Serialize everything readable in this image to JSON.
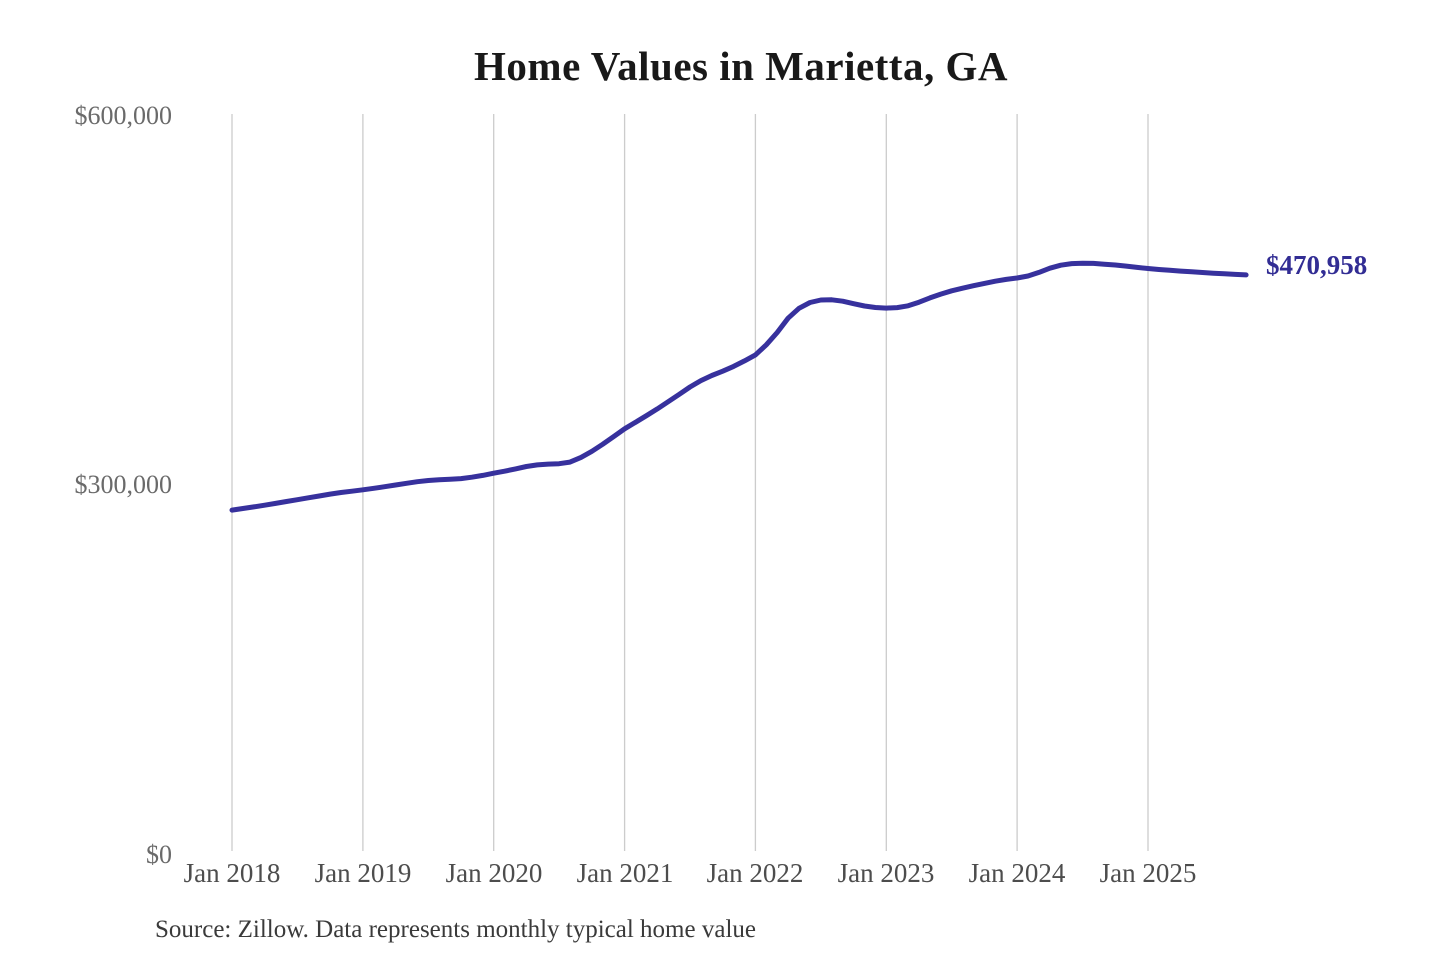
{
  "chart": {
    "title": "Home Values in Marietta, GA",
    "end_label": "$470,958",
    "source_note": "Source: Zillow. Data represents monthly typical home value"
  },
  "colors": {
    "background": "#ffffff",
    "line": "#37319d",
    "end_label_text": "#322d94",
    "gridline": "#cccccc",
    "title_text": "#191919",
    "y_tick_text": "#6a6a6a",
    "x_tick_text": "#4d4d4d",
    "source_text": "#3a3a3a"
  },
  "chart_data": {
    "type": "line",
    "title": "Home Values in Marietta, GA",
    "series_name": "Monthly typical home value",
    "source": "Source: Zillow. Data represents monthly typical home value",
    "xlabel": "",
    "ylabel": "",
    "ylim": [
      0,
      600000
    ],
    "y_tick_labels": [
      "$600,000",
      "$300,000",
      "$0"
    ],
    "y_tick_values": [
      600000,
      300000,
      0
    ],
    "x_tick_labels": [
      "Jan 2018",
      "Jan 2019",
      "Jan 2020",
      "Jan 2021",
      "Jan 2022",
      "Jan 2023",
      "Jan 2024",
      "Jan 2025"
    ],
    "grid": "vertical-only",
    "legend": "none",
    "final_value": 470958,
    "final_value_label": "$470,958",
    "months": [
      "2018-01",
      "2018-02",
      "2018-03",
      "2018-04",
      "2018-05",
      "2018-06",
      "2018-07",
      "2018-08",
      "2018-09",
      "2018-10",
      "2018-11",
      "2018-12",
      "2019-01",
      "2019-02",
      "2019-03",
      "2019-04",
      "2019-05",
      "2019-06",
      "2019-07",
      "2019-08",
      "2019-09",
      "2019-10",
      "2019-11",
      "2019-12",
      "2020-01",
      "2020-02",
      "2020-03",
      "2020-04",
      "2020-05",
      "2020-06",
      "2020-07",
      "2020-08",
      "2020-09",
      "2020-10",
      "2020-11",
      "2020-12",
      "2021-01",
      "2021-02",
      "2021-03",
      "2021-04",
      "2021-05",
      "2021-06",
      "2021-07",
      "2021-08",
      "2021-09",
      "2021-10",
      "2021-11",
      "2021-12",
      "2022-01",
      "2022-02",
      "2022-03",
      "2022-04",
      "2022-05",
      "2022-06",
      "2022-07",
      "2022-08",
      "2022-09",
      "2022-10",
      "2022-11",
      "2022-12",
      "2023-01",
      "2023-02",
      "2023-03",
      "2023-04",
      "2023-05",
      "2023-06",
      "2023-07",
      "2023-08",
      "2023-09",
      "2023-10",
      "2023-11",
      "2023-12",
      "2024-01",
      "2024-02",
      "2024-03",
      "2024-04",
      "2024-05",
      "2024-06",
      "2024-07",
      "2024-08",
      "2024-09",
      "2024-10",
      "2024-11",
      "2024-12",
      "2025-01",
      "2025-02",
      "2025-03",
      "2025-04",
      "2025-05",
      "2025-06",
      "2025-07",
      "2025-08",
      "2025-09",
      "2025-10"
    ],
    "values": [
      280000,
      281300,
      282600,
      284000,
      285500,
      287000,
      288500,
      290000,
      291500,
      293000,
      294300,
      295400,
      296500,
      297700,
      299000,
      300400,
      301800,
      303100,
      304100,
      304700,
      305100,
      305600,
      306700,
      308200,
      310000,
      311600,
      313500,
      315400,
      316700,
      317400,
      317700,
      319000,
      322800,
      327800,
      333500,
      339700,
      346000,
      351300,
      356700,
      362200,
      368000,
      374000,
      380000,
      385200,
      389300,
      392800,
      396700,
      401200,
      406000,
      414200,
      424200,
      435800,
      443900,
      448600,
      450600,
      450800,
      449600,
      447600,
      445700,
      444500,
      444000,
      444400,
      445900,
      448800,
      452300,
      455400,
      458100,
      460200,
      462200,
      464100,
      465900,
      467300,
      468500,
      470100,
      473000,
      476400,
      478900,
      480200,
      480500,
      480300,
      479700,
      479000,
      478100,
      477100,
      476200,
      475400,
      474700,
      474100,
      473500,
      472900,
      472400,
      471900,
      471400,
      470958
    ]
  }
}
